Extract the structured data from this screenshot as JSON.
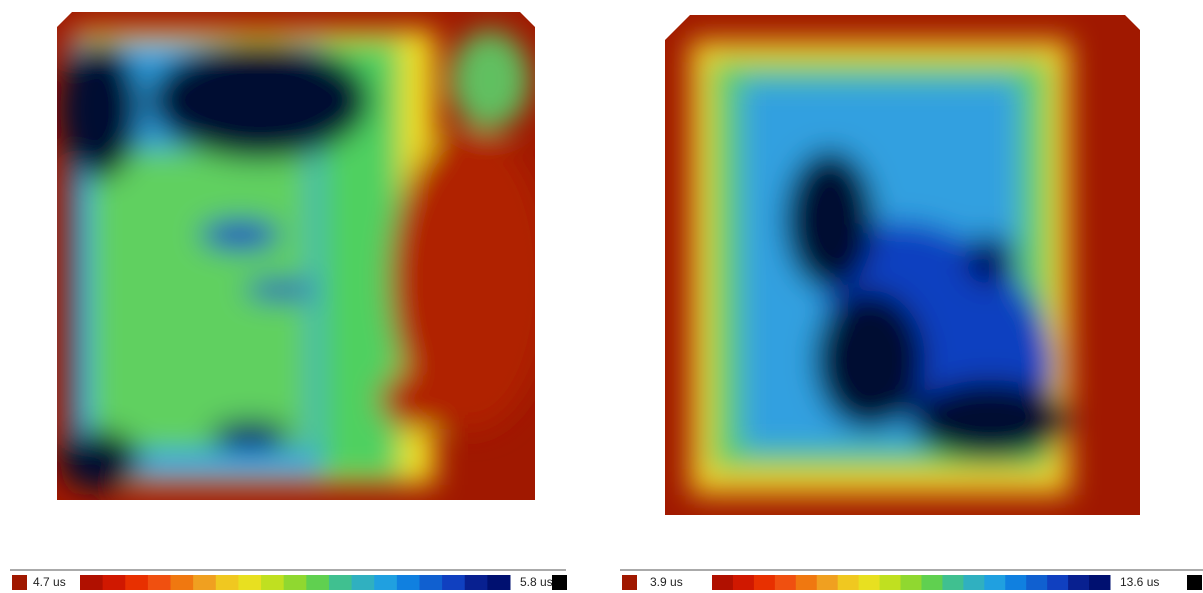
{
  "panels": [
    {
      "min_label": "4.7 us",
      "max_label": "5.8 us"
    },
    {
      "min_label": "3.9 us",
      "max_label": "13.6 us"
    }
  ]
}
